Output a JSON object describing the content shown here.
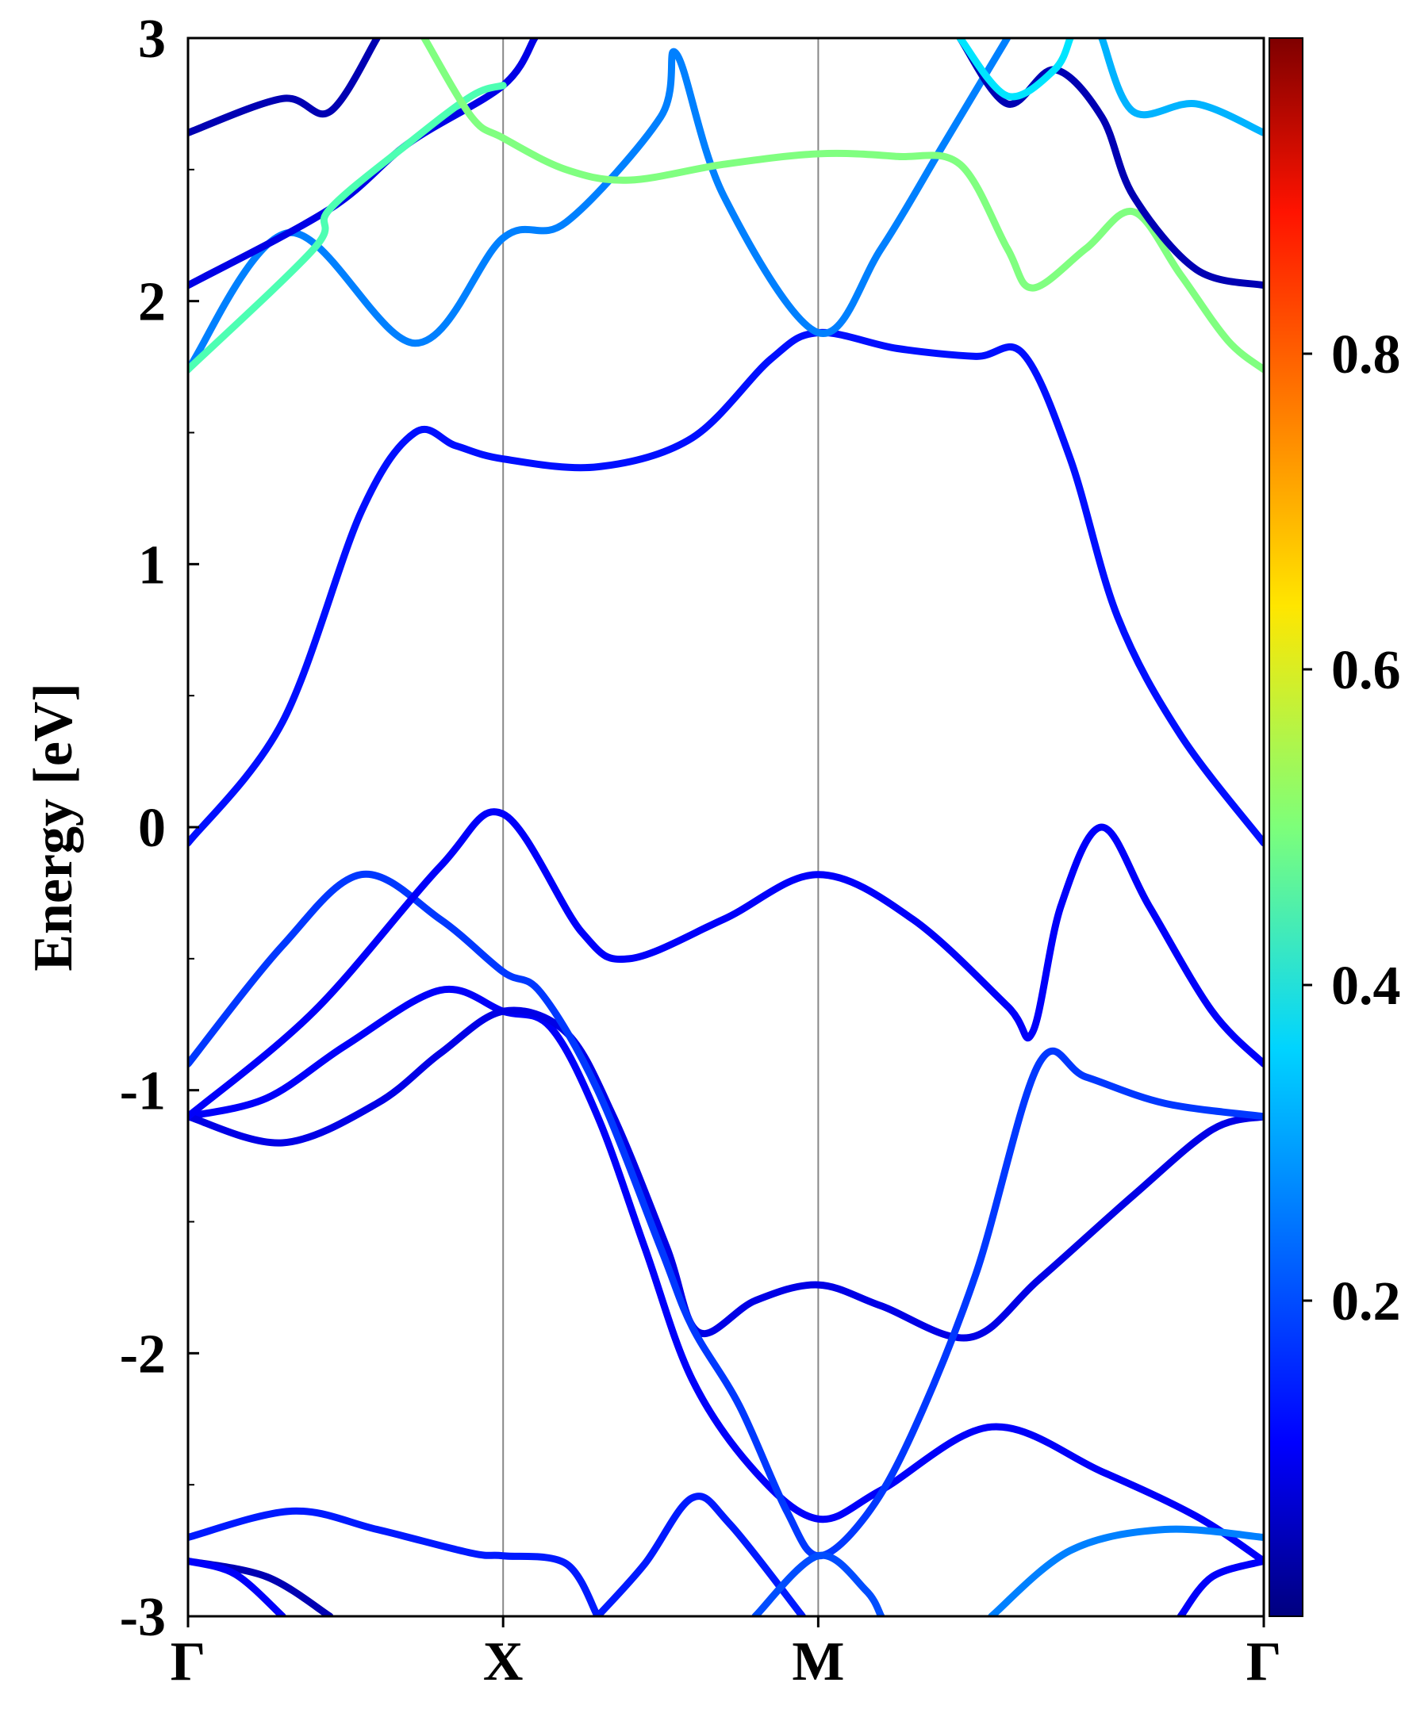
{
  "chart_data": {
    "type": "line",
    "title": "",
    "xlabel": "",
    "ylabel": "Energy [eV]",
    "ylim": [
      -3,
      3
    ],
    "yticks": [
      -3,
      -2,
      -1,
      0,
      1,
      2,
      3
    ],
    "ytick_labels": [
      "-3",
      "-2",
      "-1",
      "0",
      "1",
      "2",
      "3"
    ],
    "kpath": [
      {
        "label": "Γ",
        "k": 0.0
      },
      {
        "label": "X",
        "k": 1.0
      },
      {
        "label": "M",
        "k": 2.0
      },
      {
        "label": "Γ",
        "k": 3.414
      }
    ],
    "grid": false,
    "colorbar": {
      "colormap": "jet",
      "range": [
        0.0,
        1.0
      ],
      "ticks": [
        0.2,
        0.4,
        0.6,
        0.8
      ],
      "tick_labels": [
        "0.2",
        "0.4",
        "0.6",
        "0.8"
      ],
      "position": "right"
    },
    "bands": [
      {
        "weight": 0.05,
        "points": [
          [
            0,
            -2.79
          ],
          [
            0.25,
            -2.85
          ],
          [
            0.45,
            -3.0
          ]
        ]
      },
      {
        "weight": 0.12,
        "points": [
          [
            0,
            -2.79
          ],
          [
            0.15,
            -2.84
          ],
          [
            0.3,
            -3.0
          ]
        ]
      },
      {
        "weight": 0.15,
        "points": [
          [
            0,
            -2.7
          ],
          [
            0.33,
            -2.6
          ],
          [
            0.6,
            -2.67
          ],
          [
            0.9,
            -2.76
          ],
          [
            1.0,
            -2.77
          ],
          [
            1.2,
            -2.8
          ],
          [
            1.3,
            -3.0
          ]
        ]
      },
      {
        "weight": 0.12,
        "points": [
          [
            0,
            -1.1
          ],
          [
            0.25,
            -1.03
          ],
          [
            0.5,
            -0.83
          ],
          [
            0.8,
            -0.62
          ],
          [
            1.0,
            -0.7
          ],
          [
            1.15,
            -0.76
          ],
          [
            1.3,
            -1.1
          ],
          [
            1.45,
            -1.6
          ],
          [
            1.6,
            -2.1
          ],
          [
            1.8,
            -2.45
          ],
          [
            2.0,
            -2.63
          ],
          [
            2.2,
            -2.52
          ],
          [
            2.55,
            -2.28
          ],
          [
            2.9,
            -2.45
          ],
          [
            3.2,
            -2.62
          ],
          [
            3.414,
            -2.79
          ]
        ]
      },
      {
        "weight": 0.1,
        "points": [
          [
            0,
            -1.1
          ],
          [
            0.3,
            -1.2
          ],
          [
            0.6,
            -1.05
          ],
          [
            0.8,
            -0.86
          ],
          [
            1.0,
            -0.7
          ],
          [
            1.2,
            -0.78
          ],
          [
            1.35,
            -1.1
          ],
          [
            1.52,
            -1.6
          ],
          [
            1.62,
            -1.92
          ],
          [
            1.8,
            -1.8
          ],
          [
            2.0,
            -1.74
          ],
          [
            2.2,
            -1.82
          ],
          [
            2.48,
            -1.94
          ],
          [
            2.7,
            -1.72
          ],
          [
            3.0,
            -1.4
          ],
          [
            3.25,
            -1.15
          ],
          [
            3.414,
            -1.1
          ]
        ]
      },
      {
        "weight": 0.18,
        "points": [
          [
            0,
            -0.9
          ],
          [
            0.3,
            -0.45
          ],
          [
            0.55,
            -0.18
          ],
          [
            0.8,
            -0.35
          ],
          [
            1.0,
            -0.55
          ],
          [
            1.12,
            -0.63
          ],
          [
            1.3,
            -1.0
          ],
          [
            1.5,
            -1.6
          ],
          [
            1.6,
            -1.9
          ],
          [
            1.75,
            -2.2
          ],
          [
            1.9,
            -2.6
          ],
          [
            2.0,
            -2.77
          ],
          [
            2.15,
            -2.62
          ],
          [
            2.3,
            -2.3
          ],
          [
            2.5,
            -1.7
          ],
          [
            2.7,
            -0.9
          ],
          [
            2.85,
            -0.95
          ],
          [
            3.1,
            -1.05
          ],
          [
            3.414,
            -1.1
          ]
        ]
      },
      {
        "weight": 0.12,
        "points": [
          [
            0,
            -1.1
          ],
          [
            0.4,
            -0.7
          ],
          [
            0.8,
            -0.15
          ],
          [
            1.0,
            0.05
          ],
          [
            1.25,
            -0.4
          ],
          [
            1.4,
            -0.5
          ],
          [
            1.7,
            -0.35
          ],
          [
            2.0,
            -0.18
          ],
          [
            2.3,
            -0.35
          ],
          [
            2.6,
            -0.68
          ],
          [
            2.68,
            -0.78
          ],
          [
            2.77,
            -0.3
          ],
          [
            2.9,
            0.0
          ],
          [
            3.05,
            -0.3
          ],
          [
            3.25,
            -0.7
          ],
          [
            3.414,
            -0.9
          ]
        ]
      },
      {
        "weight": 0.14,
        "points": [
          [
            0,
            -0.06
          ],
          [
            0.3,
            0.4
          ],
          [
            0.55,
            1.2
          ],
          [
            0.72,
            1.5
          ],
          [
            0.85,
            1.45
          ],
          [
            1.0,
            1.4
          ],
          [
            1.3,
            1.37
          ],
          [
            1.6,
            1.48
          ],
          [
            1.85,
            1.78
          ],
          [
            2.0,
            1.88
          ],
          [
            2.25,
            1.82
          ],
          [
            2.5,
            1.79
          ],
          [
            2.65,
            1.8
          ],
          [
            2.8,
            1.4
          ],
          [
            2.95,
            0.8
          ],
          [
            3.15,
            0.35
          ],
          [
            3.414,
            -0.06
          ]
        ]
      },
      {
        "weight": 0.25,
        "points": [
          [
            0,
            1.74
          ],
          [
            0.32,
            2.26
          ],
          [
            0.72,
            1.84
          ],
          [
            1.0,
            2.24
          ],
          [
            1.2,
            2.3
          ],
          [
            1.5,
            2.7
          ],
          [
            1.55,
            2.94
          ],
          [
            1.7,
            2.4
          ],
          [
            2.0,
            1.88
          ],
          [
            2.2,
            2.2
          ],
          [
            2.4,
            2.6
          ],
          [
            2.6,
            3.0
          ]
        ]
      },
      {
        "weight": 0.1,
        "points": [
          [
            0,
            2.06
          ],
          [
            0.45,
            2.35
          ],
          [
            0.7,
            2.6
          ],
          [
            1.0,
            2.82
          ],
          [
            1.1,
            3.0
          ]
        ]
      },
      {
        "weight": 0.45,
        "points": [
          [
            0,
            1.74
          ],
          [
            0.4,
            2.2
          ],
          [
            0.45,
            2.35
          ],
          [
            0.7,
            2.6
          ],
          [
            0.9,
            2.78
          ],
          [
            1.0,
            2.82
          ]
        ]
      },
      {
        "weight": 0.05,
        "points": [
          [
            0,
            2.64
          ],
          [
            0.3,
            2.77
          ],
          [
            0.45,
            2.72
          ],
          [
            0.6,
            3.0
          ]
        ]
      },
      {
        "weight": 0.5,
        "points": [
          [
            0.75,
            3.0
          ],
          [
            0.9,
            2.7
          ],
          [
            1.0,
            2.62
          ],
          [
            1.2,
            2.5
          ],
          [
            1.4,
            2.46
          ],
          [
            1.7,
            2.52
          ],
          [
            2.0,
            2.56
          ],
          [
            2.25,
            2.55
          ],
          [
            2.45,
            2.52
          ],
          [
            2.6,
            2.2
          ],
          [
            2.68,
            2.05
          ],
          [
            2.85,
            2.2
          ],
          [
            3.0,
            2.34
          ],
          [
            3.15,
            2.1
          ],
          [
            3.3,
            1.85
          ],
          [
            3.414,
            1.74
          ]
        ]
      },
      {
        "weight": 0.05,
        "points": [
          [
            3.414,
            2.06
          ],
          [
            3.2,
            2.12
          ],
          [
            3.0,
            2.4
          ],
          [
            2.9,
            2.7
          ],
          [
            2.75,
            2.88
          ],
          [
            2.6,
            2.75
          ],
          [
            2.45,
            3.0
          ]
        ]
      },
      {
        "weight": 0.3,
        "points": [
          [
            3.414,
            2.64
          ],
          [
            3.2,
            2.75
          ],
          [
            3.0,
            2.72
          ],
          [
            2.9,
            3.0
          ]
        ]
      },
      {
        "weight": 0.35,
        "points": [
          [
            2.45,
            3.0
          ],
          [
            2.6,
            2.78
          ],
          [
            2.75,
            2.88
          ],
          [
            2.8,
            3.0
          ]
        ]
      },
      {
        "weight": 0.25,
        "points": [
          [
            2.55,
            -3.0
          ],
          [
            2.8,
            -2.75
          ],
          [
            3.1,
            -2.67
          ],
          [
            3.414,
            -2.7
          ]
        ]
      },
      {
        "weight": 0.12,
        "points": [
          [
            3.414,
            -2.79
          ],
          [
            3.25,
            -2.85
          ],
          [
            3.15,
            -3.0
          ]
        ]
      },
      {
        "weight": 0.15,
        "points": [
          [
            1.3,
            -3.0
          ],
          [
            1.45,
            -2.8
          ],
          [
            1.6,
            -2.55
          ],
          [
            1.72,
            -2.65
          ],
          [
            1.95,
            -3.0
          ]
        ]
      },
      {
        "weight": 0.2,
        "points": [
          [
            1.8,
            -3.0
          ],
          [
            2.0,
            -2.77
          ],
          [
            2.15,
            -2.9
          ],
          [
            2.2,
            -3.0
          ]
        ]
      }
    ]
  }
}
